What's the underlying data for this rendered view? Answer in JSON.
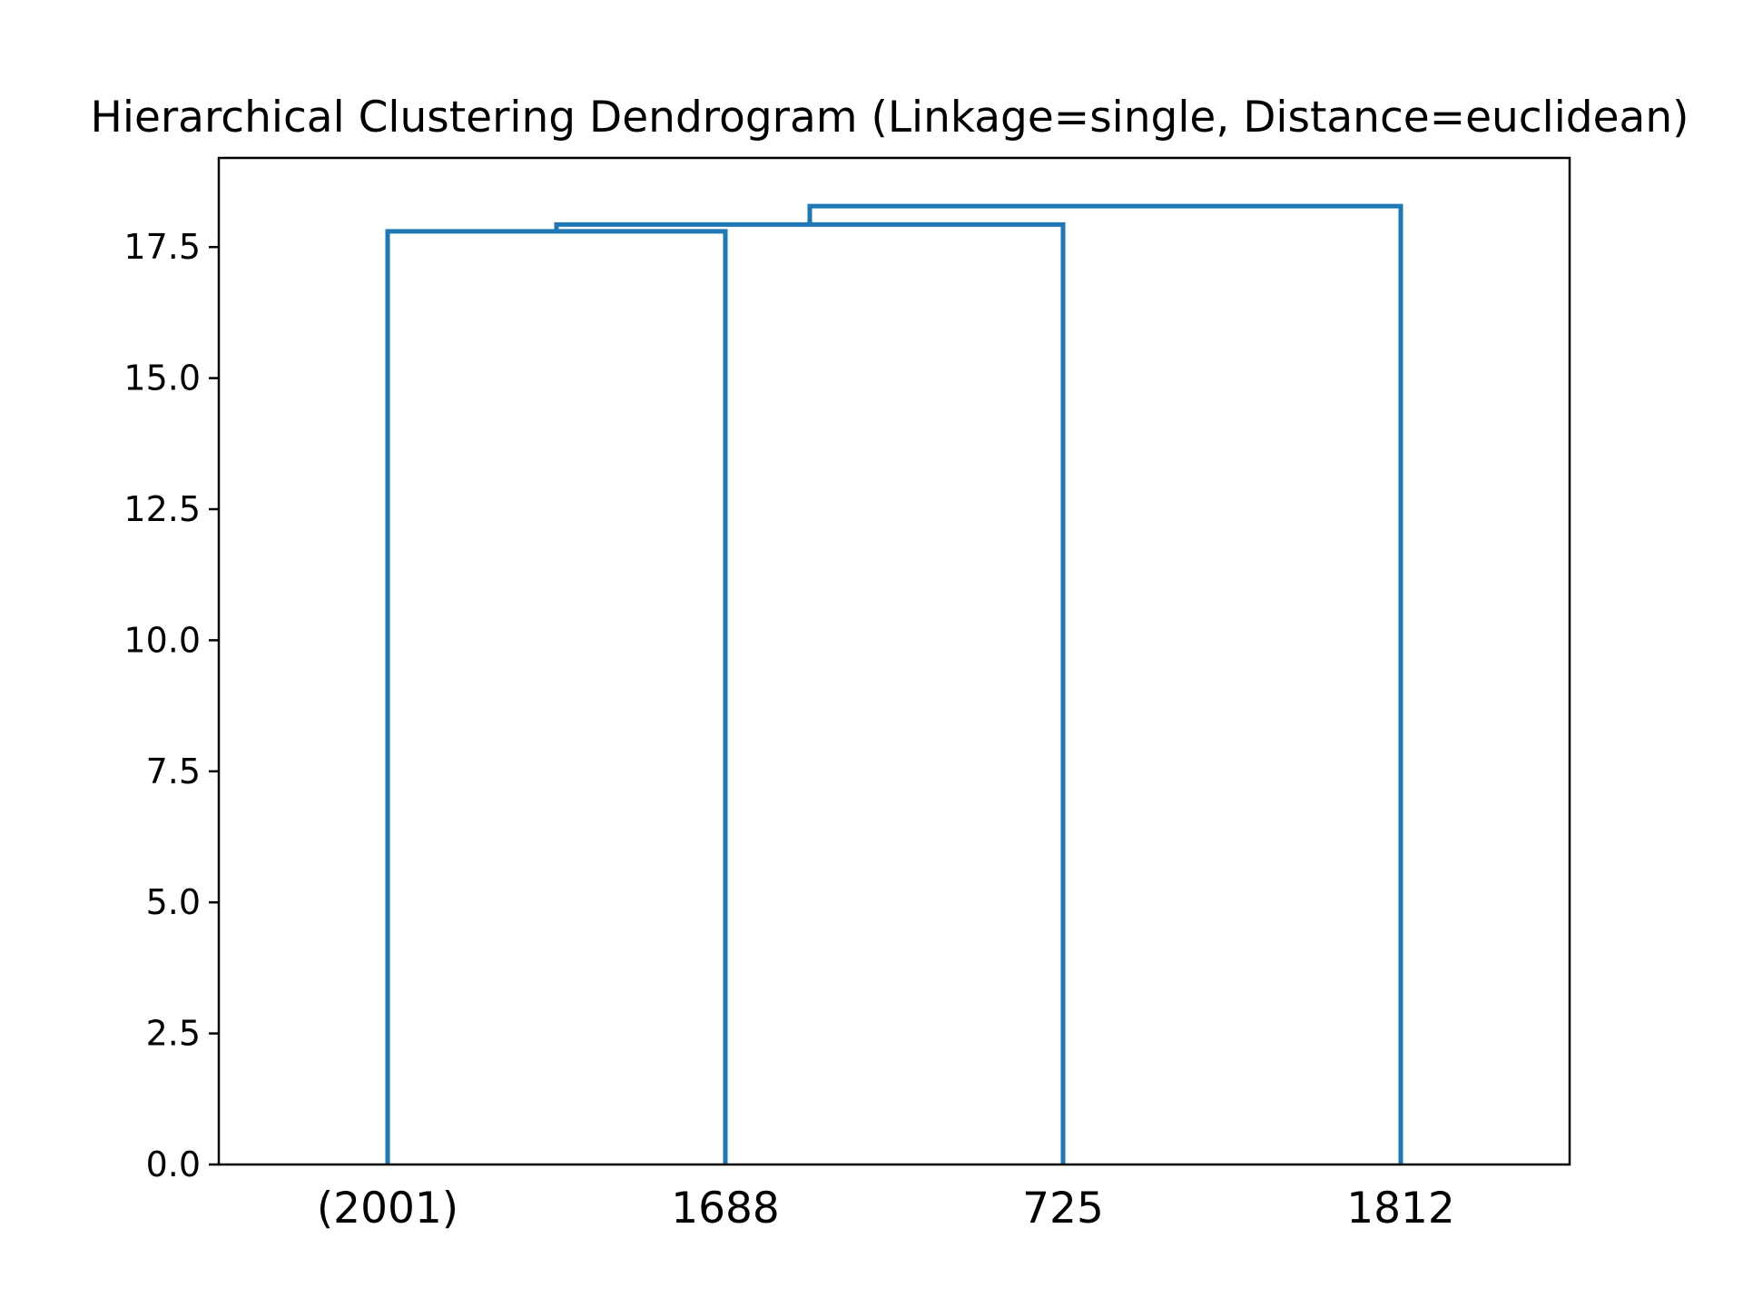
{
  "chart_data": {
    "type": "dendrogram",
    "title": "Hierarchical Clustering Dendrogram (Linkage=single, Distance=euclidean)",
    "xlabel": "",
    "ylabel": "",
    "leaf_labels": [
      "(2001)",
      "1688",
      "725",
      "1812"
    ],
    "y_ticks": [
      0.0,
      2.5,
      5.0,
      7.5,
      10.0,
      12.5,
      15.0,
      17.5
    ],
    "y_tick_labels": [
      "0.0",
      "2.5",
      "5.0",
      "7.5",
      "10.0",
      "12.5",
      "15.0",
      "17.5"
    ],
    "ylim": [
      0,
      19.2
    ],
    "merges": [
      {
        "left": "(2001)",
        "right": "1688",
        "distance": 17.8
      },
      {
        "left": "cluster((2001),1688)",
        "right": "725",
        "distance": 17.93
      },
      {
        "left": "cluster((2001),1688,725)",
        "right": "1812",
        "distance": 18.28
      }
    ],
    "grid": false,
    "link_color": "#1f77b4"
  }
}
